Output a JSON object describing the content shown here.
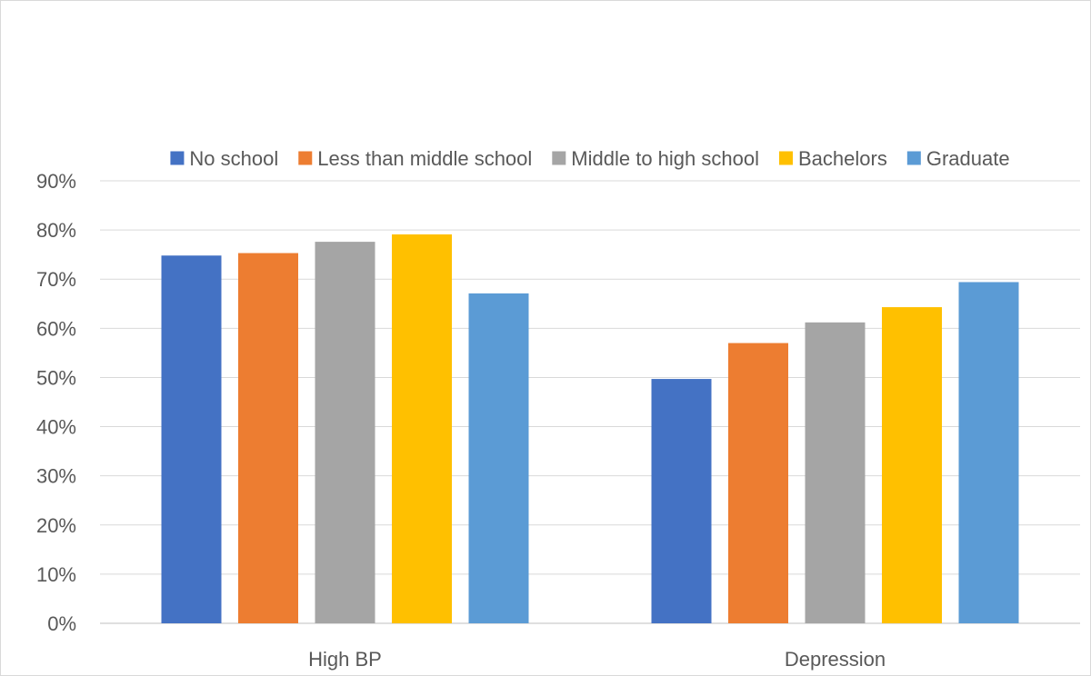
{
  "chart_data": {
    "type": "bar",
    "title": "",
    "xlabel": "",
    "ylabel": "",
    "categories": [
      "High BP",
      "Depression"
    ],
    "series": [
      {
        "name": "No school",
        "color": "#4472C4",
        "values": [
          74.8,
          49.7
        ]
      },
      {
        "name": "Less than middle school",
        "color": "#ED7D31",
        "values": [
          75.3,
          57.0
        ]
      },
      {
        "name": "Middle to high school",
        "color": "#A5A5A5",
        "values": [
          77.6,
          61.2
        ]
      },
      {
        "name": "Bachelors",
        "color": "#FFC000",
        "values": [
          79.1,
          64.3
        ]
      },
      {
        "name": "Graduate",
        "color": "#5B9BD5",
        "values": [
          67.1,
          69.4
        ]
      }
    ],
    "ylim": [
      0,
      90
    ],
    "yticks": [
      0,
      10,
      20,
      30,
      40,
      50,
      60,
      70,
      80,
      90
    ],
    "ytick_format": "percent",
    "grid": true,
    "legend_position": "top"
  }
}
